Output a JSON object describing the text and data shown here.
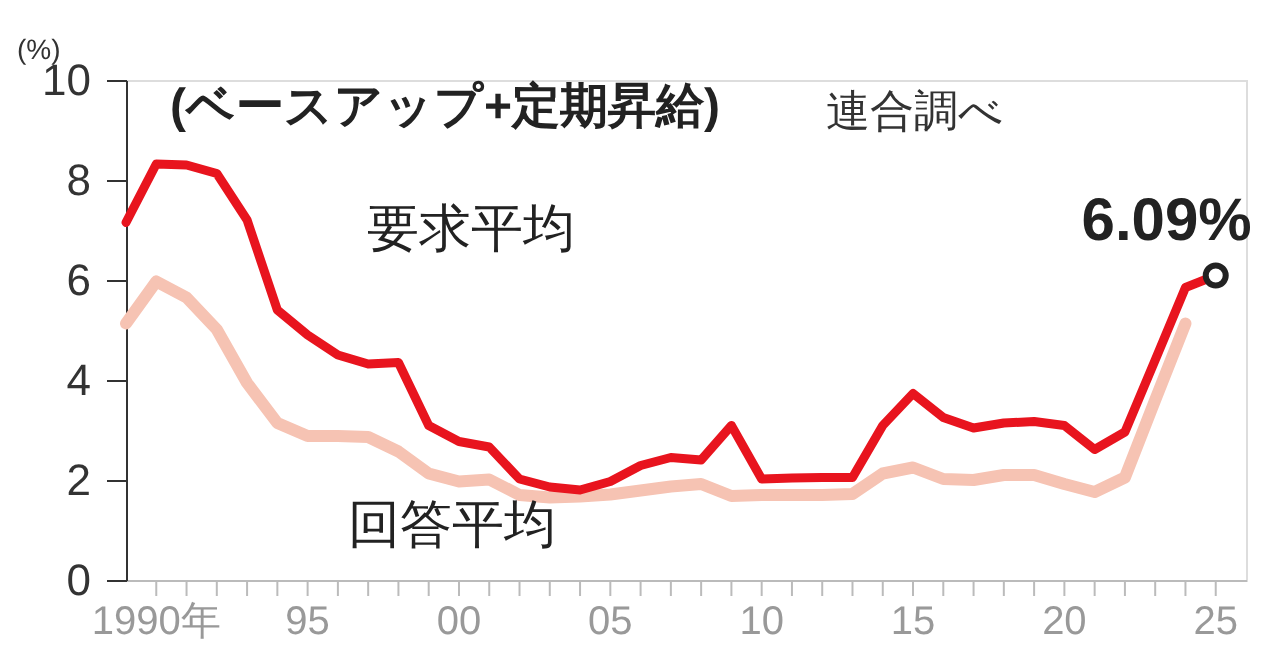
{
  "chart_data": {
    "type": "line",
    "title": "(ベースアップ+定期昇給)",
    "ylabel": "(%)",
    "annotations": [
      "連合調べ",
      {
        "text": "6.09%",
        "x": 2025,
        "y": 6.09
      }
    ],
    "x": [
      1989,
      1990,
      1991,
      1992,
      1993,
      1994,
      1995,
      1996,
      1997,
      1998,
      1999,
      2000,
      2001,
      2002,
      2003,
      2004,
      2005,
      2006,
      2007,
      2008,
      2009,
      2010,
      2011,
      2012,
      2013,
      2014,
      2015,
      2016,
      2017,
      2018,
      2019,
      2020,
      2021,
      2022,
      2023,
      2024,
      2025
    ],
    "series": [
      {
        "name": "要求平均",
        "color": "#e8141e",
        "values": [
          7.15,
          8.32,
          8.3,
          8.13,
          7.2,
          5.4,
          4.9,
          4.5,
          4.32,
          4.35,
          3.09,
          2.77,
          2.66,
          2.02,
          1.86,
          1.8,
          1.97,
          2.29,
          2.45,
          2.4,
          3.09,
          2.02,
          2.04,
          2.05,
          2.05,
          3.09,
          3.73,
          3.25,
          3.04,
          3.14,
          3.17,
          3.09,
          2.61,
          2.96,
          4.4,
          5.85,
          6.09
        ]
      },
      {
        "name": "回答平均",
        "color": "#f6c3b3",
        "values": [
          5.13,
          5.97,
          5.65,
          5.01,
          3.94,
          3.14,
          2.88,
          2.88,
          2.86,
          2.57,
          2.13,
          1.97,
          2.01,
          1.7,
          1.65,
          1.67,
          1.71,
          1.79,
          1.87,
          1.92,
          1.68,
          1.7,
          1.7,
          1.7,
          1.72,
          2.13,
          2.25,
          2.02,
          2.0,
          2.1,
          2.1,
          1.92,
          1.76,
          2.05,
          3.6,
          5.13,
          null
        ]
      },
      {
        "type": "scatter",
        "color": "#222222",
        "marker": "circle",
        "x": [
          2025
        ],
        "values": [
          6.09
        ]
      }
    ],
    "xlim": [
      1989,
      2026
    ],
    "xticks": [
      {
        "value": 1990,
        "label": "1990年"
      },
      {
        "value": 1991,
        "label": null
      },
      {
        "value": 1992,
        "label": null
      },
      {
        "value": 1993,
        "label": null
      },
      {
        "value": 1994,
        "label": null
      },
      {
        "value": 1995,
        "label": "95"
      },
      {
        "value": 1996,
        "label": null
      },
      {
        "value": 1997,
        "label": null
      },
      {
        "value": 1998,
        "label": null
      },
      {
        "value": 1999,
        "label": null
      },
      {
        "value": 2000,
        "label": "00"
      },
      {
        "value": 2001,
        "label": null
      },
      {
        "value": 2002,
        "label": null
      },
      {
        "value": 2003,
        "label": null
      },
      {
        "value": 2004,
        "label": null
      },
      {
        "value": 2005,
        "label": "05"
      },
      {
        "value": 2006,
        "label": null
      },
      {
        "value": 2007,
        "label": null
      },
      {
        "value": 2008,
        "label": null
      },
      {
        "value": 2009,
        "label": null
      },
      {
        "value": 2010,
        "label": "10"
      },
      {
        "value": 2011,
        "label": null
      },
      {
        "value": 2012,
        "label": null
      },
      {
        "value": 2013,
        "label": null
      },
      {
        "value": 2014,
        "label": null
      },
      {
        "value": 2015,
        "label": "15"
      },
      {
        "value": 2016,
        "label": null
      },
      {
        "value": 2017,
        "label": null
      },
      {
        "value": 2018,
        "label": null
      },
      {
        "value": 2019,
        "label": null
      },
      {
        "value": 2020,
        "label": "20"
      },
      {
        "value": 2021,
        "label": null
      },
      {
        "value": 2022,
        "label": null
      },
      {
        "value": 2023,
        "label": null
      },
      {
        "value": 2024,
        "label": null
      },
      {
        "value": 2025,
        "label": "25"
      }
    ],
    "ylim": [
      0,
      10
    ],
    "yticks": [
      0,
      2,
      4,
      6,
      8,
      10
    ],
    "grid": false,
    "marker": "none",
    "line_style": "solid"
  }
}
